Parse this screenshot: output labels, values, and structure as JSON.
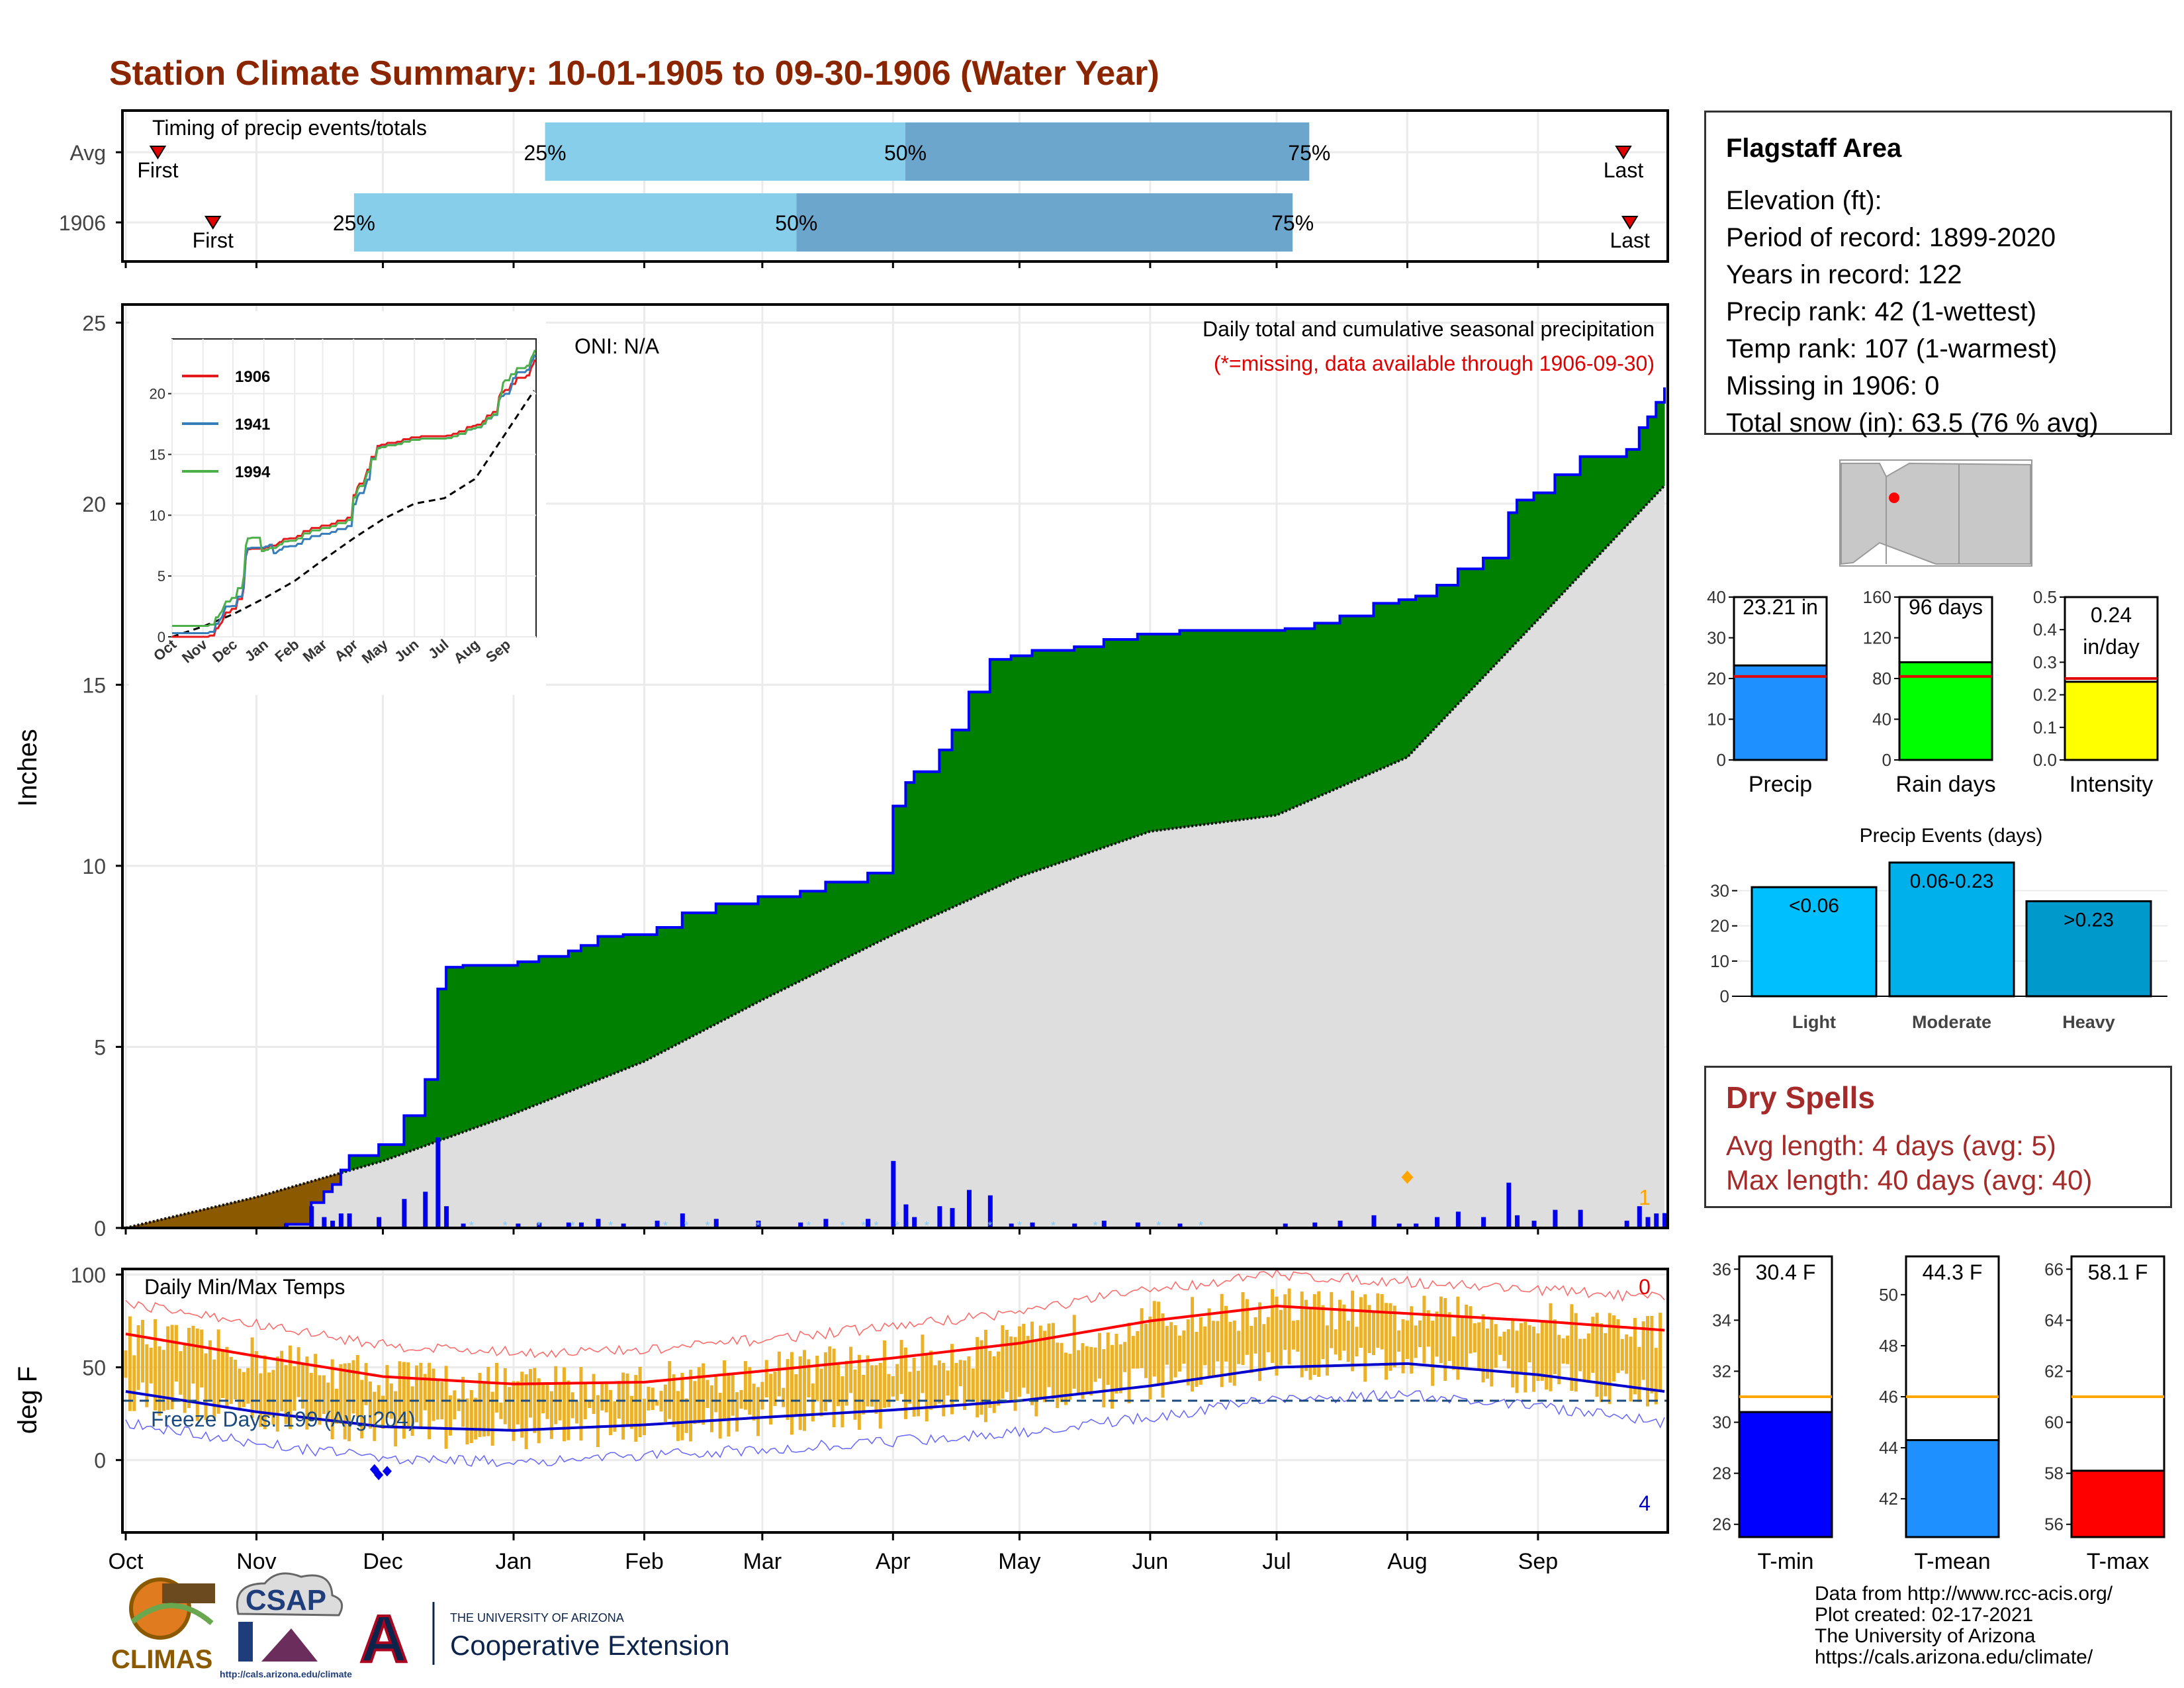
{
  "title": "Station Climate Summary: 10-01-1905 to 09-30-1906 (Water Year)",
  "timing_panel": {
    "label": "Timing of precip events/totals",
    "rows": [
      {
        "name": "Avg",
        "first_month": 0.25,
        "last_month": 11.68,
        "p25": 3.27,
        "p50": 6.08,
        "p75": 9.23
      },
      {
        "name": "1906",
        "first_month": 0.68,
        "last_month": 11.73,
        "p25": 1.78,
        "p50": 5.23,
        "p75": 9.1
      }
    ],
    "first_label": "First",
    "last_label": "Last",
    "p25_label": "25%",
    "p50_label": "50%",
    "p75_label": "75%"
  },
  "month_labels": [
    "Oct",
    "Nov",
    "Dec",
    "Jan",
    "Feb",
    "Mar",
    "Apr",
    "May",
    "Jun",
    "Jul",
    "Aug",
    "Sep"
  ],
  "precip_panel": {
    "ylabel": "Inches",
    "yticks": [
      0,
      5,
      10,
      15,
      20,
      25
    ],
    "ymax": 25.5,
    "oni_label": "ONI: N/A",
    "caption1": "Daily total and cumulative seasonal precipitation",
    "caption2": "(*=missing, data available through 1906-09-30)",
    "marker_count_label": "1",
    "colors": {
      "above": "#008000",
      "below": "#8b5a00",
      "avg_fill": "#dedede",
      "cum_line": "#0000ff"
    }
  },
  "inset_chart": {
    "yticks": [
      0,
      5,
      10,
      15,
      20
    ],
    "xlabels": [
      "Oct",
      "Nov",
      "Dec",
      "Jan",
      "Feb",
      "Mar",
      "Apr",
      "May",
      "Jun",
      "Jul",
      "Aug",
      "Sep"
    ],
    "legend": [
      {
        "name": "1906",
        "color": "#e41a1c"
      },
      {
        "name": "1941",
        "color": "#377eb8"
      },
      {
        "name": "1994",
        "color": "#4daf4a"
      }
    ]
  },
  "temp_panel": {
    "ylabel": "deg F",
    "yticks": [
      0,
      50,
      100
    ],
    "label": "Daily Min/Max Temps",
    "freeze_label": "Freeze Days: 199 (Avg:204)",
    "max_count_label": "0",
    "min_count_label": "4",
    "colors": {
      "bars": "#eab129",
      "max_avg": "#ff0000",
      "min_avg": "#0000cc"
    }
  },
  "station_box": {
    "title": "Flagstaff Area",
    "lines": [
      "Elevation (ft):",
      "Period of record: 1899-2020",
      "Years in record: 122",
      "Precip rank: 42 (1-wettest)",
      "Temp rank: 107 (1-warmest)",
      "Missing in 1906: 0",
      "Total snow (in): 63.5 (76 % avg)"
    ]
  },
  "mini_bars": [
    {
      "label": "Precip",
      "value_text": "23.21 in",
      "value": 23.21,
      "avg": 20.5,
      "ymax": 40,
      "yticks": [
        0,
        10,
        20,
        30,
        40
      ],
      "color": "#1e90ff"
    },
    {
      "label": "Rain days",
      "value_text": "96 days",
      "value": 96,
      "avg": 82,
      "ymax": 160,
      "yticks": [
        0,
        40,
        80,
        120,
        160
      ],
      "color": "#00ff00"
    },
    {
      "label": "Intensity",
      "value_text": "0.24 in/day",
      "value": 0.24,
      "avg": 0.25,
      "ymax": 0.5,
      "yticks": [
        0.0,
        0.1,
        0.2,
        0.3,
        0.4,
        0.5
      ],
      "color": "#ffff00"
    }
  ],
  "precip_events": {
    "title": "Precip Events (days)",
    "yticks": [
      0,
      10,
      20,
      30
    ],
    "ymax": 38,
    "bars": [
      {
        "label": "Light",
        "range": "<0.06",
        "value": 31,
        "color": "#00bfff"
      },
      {
        "label": "Moderate",
        "range": "0.06-0.23",
        "value": 38,
        "color": "#00b0ea"
      },
      {
        "label": "Heavy",
        "range": ">0.23",
        "value": 27,
        "color": "#0099cc"
      }
    ]
  },
  "dry_spells": {
    "title": "Dry Spells",
    "avg_line": "Avg length: 4 days (avg: 5)",
    "max_line": "Max length: 40 days (avg: 40)"
  },
  "temp_bars": [
    {
      "label": "T-min",
      "value_text": "30.4 F",
      "value": 30.4,
      "avg": 31.0,
      "ymin": 25.5,
      "ymax": 36.5,
      "yticks": [
        26,
        28,
        30,
        32,
        34,
        36
      ],
      "color": "#0000ff"
    },
    {
      "label": "T-mean",
      "value_text": "44.3 F",
      "value": 44.3,
      "avg": 46.0,
      "ymin": 40.5,
      "ymax": 51.5,
      "yticks": [
        42,
        44,
        46,
        48,
        50
      ],
      "color": "#1e90ff"
    },
    {
      "label": "T-max",
      "value_text": "58.1 F",
      "value": 58.1,
      "avg": 61.0,
      "ymin": 55.5,
      "ymax": 66.5,
      "yticks": [
        56,
        58,
        60,
        62,
        64,
        66
      ],
      "color": "#ff0000"
    }
  ],
  "logos": {
    "climas": "CLIMAS",
    "csap": "CSAP",
    "csap_url": "http://cals.arizona.edu/climate",
    "ua_small": "THE UNIVERSITY OF ARIZONA",
    "ua_big": "Cooperative Extension"
  },
  "credits": [
    "Data from http://www.rcc-acis.org/",
    "Plot created: 02-17-2021",
    "The University of Arizona",
    "https://cals.arizona.edu/climate/"
  ]
}
